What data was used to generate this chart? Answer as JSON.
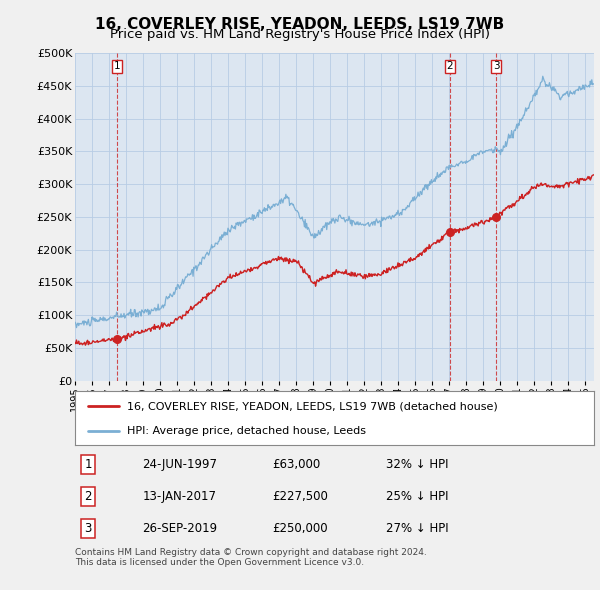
{
  "title": "16, COVERLEY RISE, YEADON, LEEDS, LS19 7WB",
  "subtitle": "Price paid vs. HM Land Registry's House Price Index (HPI)",
  "title_fontsize": 11,
  "subtitle_fontsize": 9.5,
  "ylabel_ticks": [
    "£0",
    "£50K",
    "£100K",
    "£150K",
    "£200K",
    "£250K",
    "£300K",
    "£350K",
    "£400K",
    "£450K",
    "£500K"
  ],
  "ytick_values": [
    0,
    50000,
    100000,
    150000,
    200000,
    250000,
    300000,
    350000,
    400000,
    450000,
    500000
  ],
  "xmin": 1995.0,
  "xmax": 2025.5,
  "ymin": 0,
  "ymax": 500000,
  "hpi_color": "#7bafd4",
  "price_color": "#cc2222",
  "transactions": [
    {
      "date": 1997.48,
      "price": 63000,
      "label": "1"
    },
    {
      "date": 2017.04,
      "price": 227500,
      "label": "2"
    },
    {
      "date": 2019.74,
      "price": 250000,
      "label": "3"
    }
  ],
  "vline_dates": [
    1997.48,
    2017.04,
    2019.74
  ],
  "table_data": [
    [
      "1",
      "24-JUN-1997",
      "£63,000",
      "32% ↓ HPI"
    ],
    [
      "2",
      "13-JAN-2017",
      "£227,500",
      "25% ↓ HPI"
    ],
    [
      "3",
      "26-SEP-2019",
      "£250,000",
      "27% ↓ HPI"
    ]
  ],
  "legend_entries": [
    "16, COVERLEY RISE, YEADON, LEEDS, LS19 7WB (detached house)",
    "HPI: Average price, detached house, Leeds"
  ],
  "footnote": "Contains HM Land Registry data © Crown copyright and database right 2024.\nThis data is licensed under the Open Government Licence v3.0.",
  "bg_color": "#f0f0f0",
  "plot_bg_color": "#dce6f1",
  "grid_color": "#b8cce4"
}
